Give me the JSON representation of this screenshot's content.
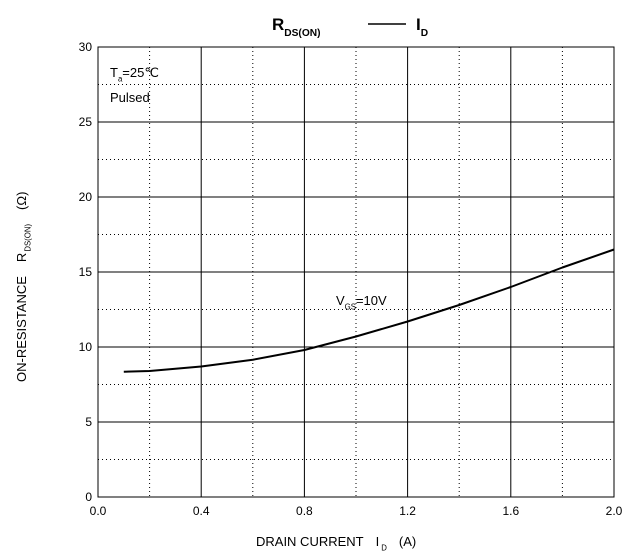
{
  "chart_data": {
    "type": "line",
    "title": {
      "symbol": "R",
      "symbol_sub": "DS(ON)",
      "symbol2": "I",
      "symbol2_sub": "D"
    },
    "x_label": {
      "text": "DRAIN CURRENT",
      "symbol": "I",
      "sub": "D",
      "unit": "(A)"
    },
    "y_label": {
      "text": "ON-RESISTANCE",
      "symbol": "R",
      "sub": "DS(ON)",
      "unit": "(Ω)"
    },
    "annotations": [
      {
        "symbol": "T",
        "sub": "a",
        "text": "=25℃"
      },
      {
        "text": "Pulsed"
      },
      {
        "symbol": "V",
        "sub": "GS",
        "text": "=10V"
      }
    ],
    "x": [
      0.1,
      0.2,
      0.4,
      0.6,
      0.8,
      1.0,
      1.2,
      1.4,
      1.6,
      1.8,
      2.0
    ],
    "values": [
      8.35,
      8.4,
      8.7,
      9.15,
      9.8,
      10.7,
      11.7,
      12.8,
      14.0,
      15.3,
      16.5
    ],
    "color": "#000000",
    "xlim": [
      0,
      2
    ],
    "ylim": [
      0,
      30
    ],
    "xticks": [
      {
        "value": 0,
        "label": "0.0"
      },
      0.4,
      0.8,
      1.2,
      1.6,
      {
        "value": 2,
        "label": "2.0"
      }
    ],
    "yticks": [
      0,
      5,
      10,
      15,
      20,
      25,
      30
    ],
    "x_minor_grid": [
      0.2,
      0.6,
      1.0,
      1.4,
      1.8
    ],
    "y_minor_grid": [
      2.5,
      7.5,
      12.5,
      17.5,
      22.5,
      27.5
    ],
    "grid": true
  }
}
